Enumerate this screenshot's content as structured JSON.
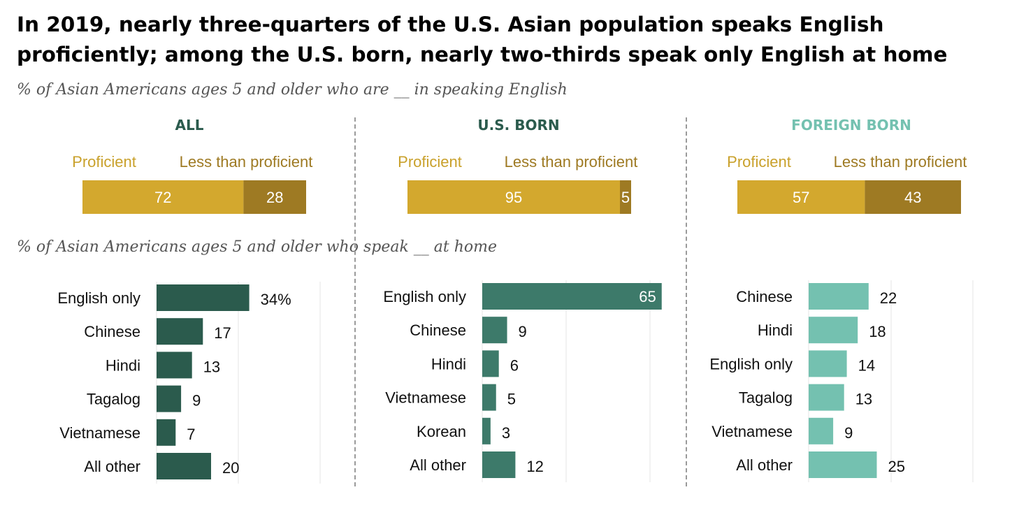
{
  "title": "In 2019, nearly three-quarters of the U.S. Asian population speaks English proficiently; among the U.S. born, nearly two-thirds speak only English at home",
  "subtitle_proficiency": "% of Asian Americans ages 5 and older who are __ in speaking English",
  "subtitle_home": "% of Asian Americans ages 5 and older who speak __ at home",
  "colors": {
    "proficient": "#d3a82e",
    "less_than_proficient": "#9e7a23",
    "all": "#2b5b4d",
    "us_born": "#3d7a6a",
    "foreign_born": "#74c1b0"
  },
  "chart_data": [
    {
      "type": "bar",
      "stacked": true,
      "title": "ALL",
      "series": [
        {
          "name": "Proficient",
          "values": [
            72
          ]
        },
        {
          "name": "Less than proficient",
          "values": [
            28
          ]
        }
      ]
    },
    {
      "type": "bar",
      "stacked": true,
      "title": "U.S. BORN",
      "series": [
        {
          "name": "Proficient",
          "values": [
            95
          ]
        },
        {
          "name": "Less than proficient",
          "values": [
            5
          ]
        }
      ]
    },
    {
      "type": "bar",
      "stacked": true,
      "title": "FOREIGN BORN",
      "series": [
        {
          "name": "Proficient",
          "values": [
            57
          ]
        },
        {
          "name": "Less than proficient",
          "values": [
            43
          ]
        }
      ]
    },
    {
      "type": "bar",
      "orientation": "horizontal",
      "categories": [
        "English only",
        "Chinese",
        "Hindi",
        "Tagalog",
        "Vietnamese",
        "All other"
      ],
      "values": [
        34,
        17,
        13,
        9,
        7,
        20
      ],
      "value_labels": [
        "34%",
        "17",
        "13",
        "9",
        "7",
        "20"
      ]
    },
    {
      "type": "bar",
      "orientation": "horizontal",
      "categories": [
        "English only",
        "Chinese",
        "Hindi",
        "Vietnamese",
        "Korean",
        "All other"
      ],
      "values": [
        65,
        9,
        6,
        5,
        3,
        12
      ],
      "value_labels": [
        "65",
        "9",
        "6",
        "5",
        "3",
        "12"
      ]
    },
    {
      "type": "bar",
      "orientation": "horizontal",
      "categories": [
        "Chinese",
        "Hindi",
        "English only",
        "Tagalog",
        "Vietnamese",
        "All other"
      ],
      "values": [
        22,
        18,
        14,
        13,
        9,
        25
      ],
      "value_labels": [
        "22",
        "18",
        "14",
        "13",
        "9",
        "25"
      ]
    }
  ]
}
